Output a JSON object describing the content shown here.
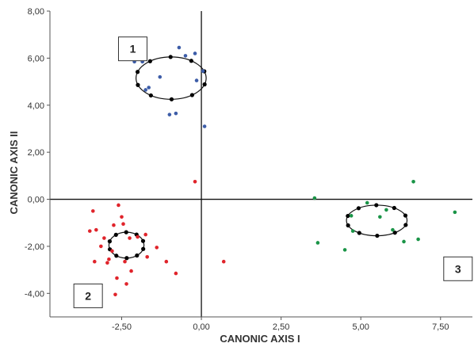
{
  "chart_data": {
    "type": "scatter",
    "xlabel": "CANONIC AXIS I",
    "ylabel": "CANONIC AXIS II",
    "xlim": [
      -4.75,
      8.5
    ],
    "ylim": [
      -5.0,
      8.0
    ],
    "x_ticks": [
      -2.5,
      0,
      2.5,
      5,
      7.5
    ],
    "x_tick_labels": [
      "-2,50",
      "0,00",
      "2,50",
      "5,00",
      "7,50"
    ],
    "y_ticks": [
      8,
      6,
      4,
      2,
      0,
      -2,
      -4
    ],
    "y_tick_labels": [
      "8,00",
      "6,00",
      "4,00",
      "2,00",
      "0,00",
      "-2,00",
      "-4,00"
    ],
    "reference_lines": {
      "x": 0,
      "y": 0
    },
    "groups": [
      {
        "label": "1",
        "label_box_position": [
          -2.6,
          6.9
        ],
        "color": "#3d5da8",
        "points": [
          [
            -2.1,
            5.85
          ],
          [
            -1.85,
            5.85
          ],
          [
            -1.75,
            4.65
          ],
          [
            -1.65,
            4.75
          ],
          [
            -1.3,
            5.2
          ],
          [
            -1.0,
            3.6
          ],
          [
            -0.8,
            3.65
          ],
          [
            -0.7,
            6.45
          ],
          [
            -0.5,
            6.1
          ],
          [
            -0.2,
            6.2
          ],
          [
            -0.15,
            5.05
          ],
          [
            0.05,
            5.45
          ],
          [
            0.1,
            3.1
          ]
        ],
        "ellipse": {
          "center": [
            -0.95,
            5.15
          ],
          "rx": 1.1,
          "ry": 0.9
        }
      },
      {
        "label": "2",
        "label_box_position": [
          -4.0,
          -3.6
        ],
        "color": "#e0242b",
        "points": [
          [
            -3.5,
            -1.35
          ],
          [
            -3.4,
            -0.5
          ],
          [
            -3.35,
            -2.65
          ],
          [
            -3.3,
            -1.3
          ],
          [
            -3.15,
            -2.0
          ],
          [
            -3.05,
            -1.65
          ],
          [
            -2.95,
            -2.7
          ],
          [
            -2.9,
            -2.55
          ],
          [
            -2.8,
            -2.2
          ],
          [
            -2.75,
            -1.1
          ],
          [
            -2.7,
            -4.05
          ],
          [
            -2.65,
            -3.35
          ],
          [
            -2.6,
            -0.25
          ],
          [
            -2.5,
            -0.75
          ],
          [
            -2.45,
            -1.05
          ],
          [
            -2.4,
            -2.65
          ],
          [
            -2.35,
            -3.6
          ],
          [
            -2.25,
            -1.65
          ],
          [
            -2.2,
            -3.05
          ],
          [
            -2.0,
            -1.6
          ],
          [
            -1.75,
            -1.5
          ],
          [
            -1.7,
            -2.45
          ],
          [
            -1.4,
            -2.05
          ],
          [
            -1.1,
            -2.65
          ],
          [
            -0.8,
            -3.15
          ],
          [
            -0.2,
            0.75
          ],
          [
            0.7,
            -2.65
          ]
        ],
        "ellipse": {
          "center": [
            -2.35,
            -1.95
          ],
          "rx": 0.55,
          "ry": 0.55
        }
      },
      {
        "label": "3",
        "label_box_position": [
          7.6,
          -2.45
        ],
        "color": "#1a9447",
        "points": [
          [
            3.55,
            0.05
          ],
          [
            3.65,
            -1.85
          ],
          [
            4.5,
            -2.15
          ],
          [
            4.7,
            -0.7
          ],
          [
            4.75,
            -1.35
          ],
          [
            5.2,
            -0.15
          ],
          [
            5.6,
            -0.75
          ],
          [
            5.8,
            -0.45
          ],
          [
            6.0,
            -1.3
          ],
          [
            6.35,
            -1.8
          ],
          [
            6.65,
            0.75
          ],
          [
            6.8,
            -1.7
          ],
          [
            7.95,
            -0.55
          ]
        ],
        "ellipse": {
          "center": [
            5.5,
            -0.9
          ],
          "rx": 0.95,
          "ry": 0.65
        }
      }
    ]
  }
}
